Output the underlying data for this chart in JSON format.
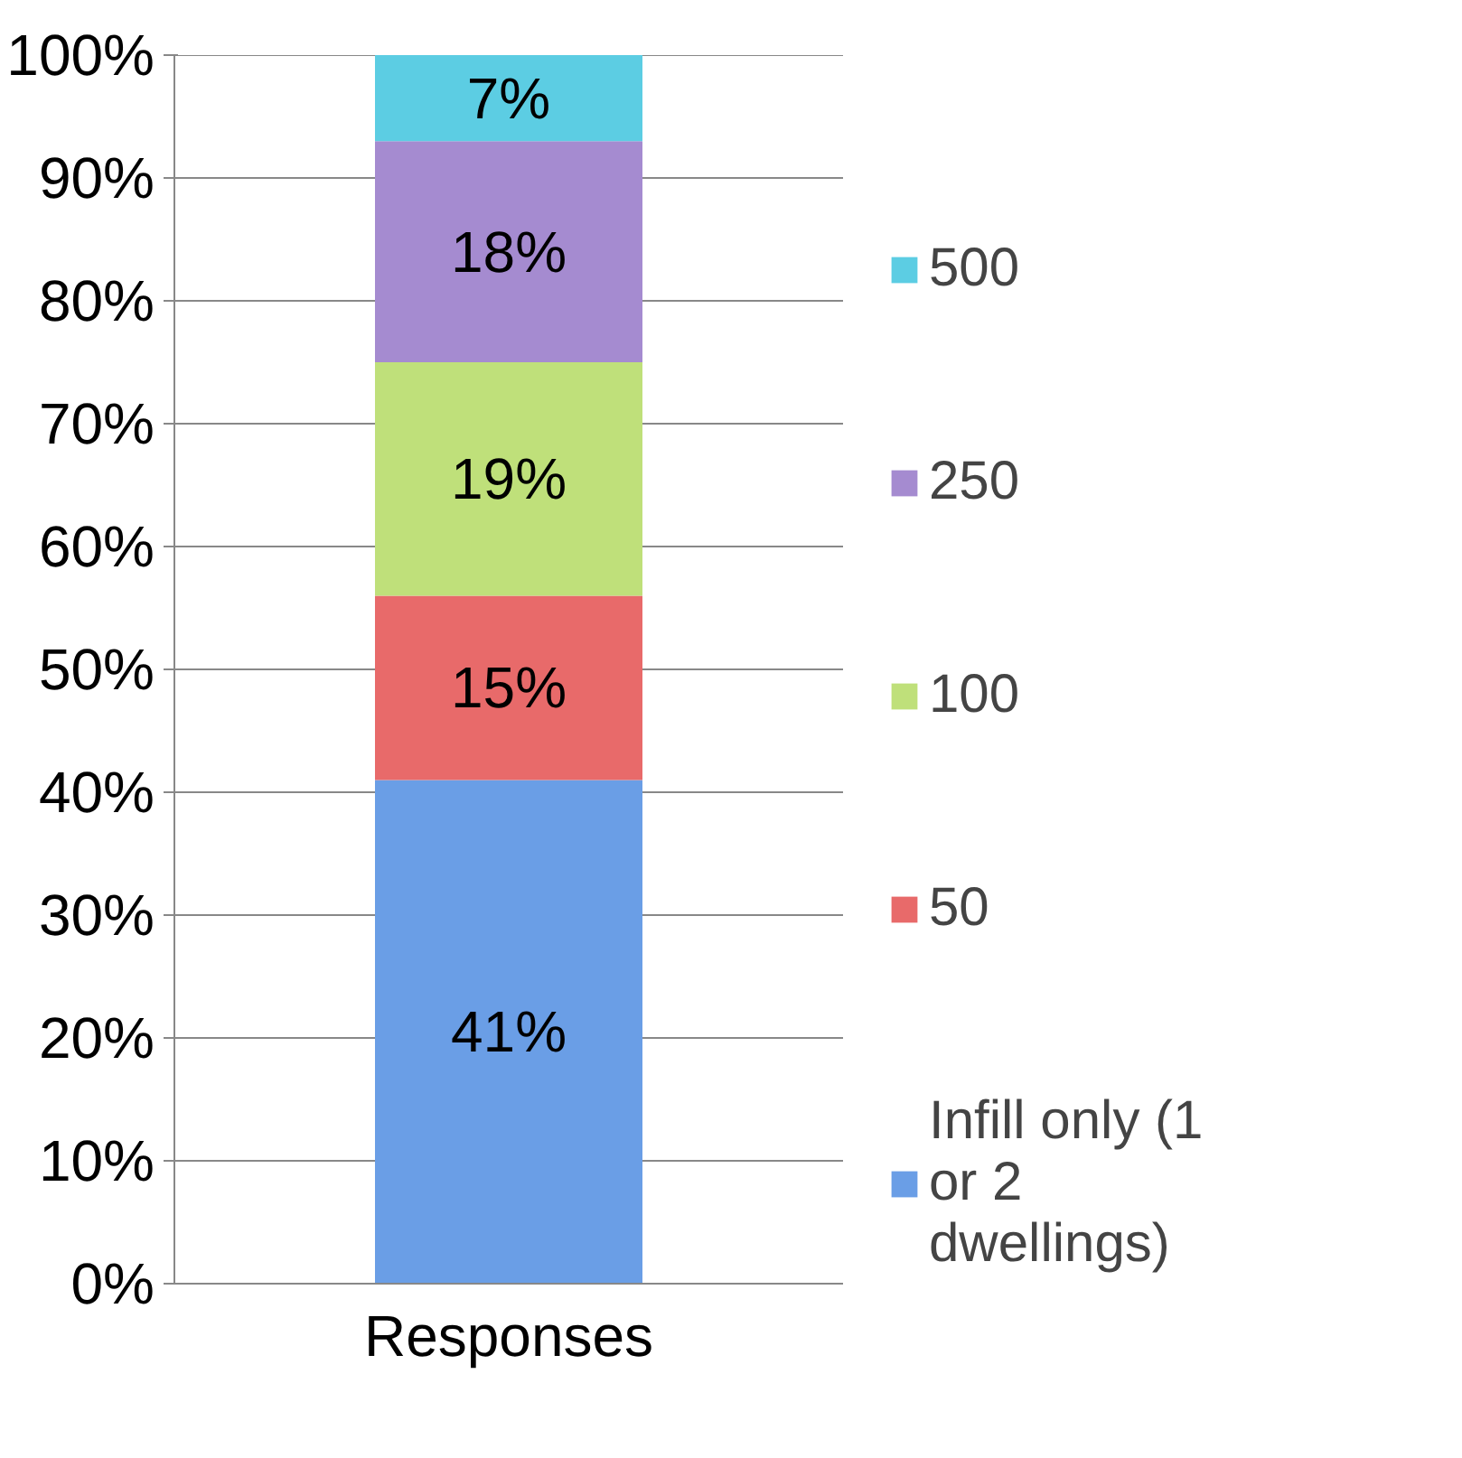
{
  "chart_data": {
    "type": "bar",
    "stacked": true,
    "categories": [
      "Responses"
    ],
    "series": [
      {
        "name": "Infill only (1 or 2 dwellings)",
        "color": "#6a9ee6",
        "values": [
          41
        ]
      },
      {
        "name": "50",
        "color": "#e86a6a",
        "values": [
          15
        ]
      },
      {
        "name": "100",
        "color": "#bfe07a",
        "values": [
          19
        ]
      },
      {
        "name": "250",
        "color": "#a58bd0",
        "values": [
          18
        ]
      },
      {
        "name": "500",
        "color": "#5ccde3",
        "values": [
          7
        ]
      }
    ],
    "ylim": [
      0,
      100
    ],
    "yticks": [
      {
        "value": 0,
        "label": "0%"
      },
      {
        "value": 10,
        "label": "10%"
      },
      {
        "value": 20,
        "label": "20%"
      },
      {
        "value": 30,
        "label": "30%"
      },
      {
        "value": 40,
        "label": "40%"
      },
      {
        "value": 50,
        "label": "50%"
      },
      {
        "value": 60,
        "label": "60%"
      },
      {
        "value": 70,
        "label": "70%"
      },
      {
        "value": 80,
        "label": "80%"
      },
      {
        "value": 90,
        "label": "90%"
      },
      {
        "value": 100,
        "label": "100%"
      }
    ],
    "value_labels": [
      "41%",
      "15%",
      "19%",
      "18%",
      "7%"
    ],
    "grid": "y",
    "legend": "right"
  }
}
